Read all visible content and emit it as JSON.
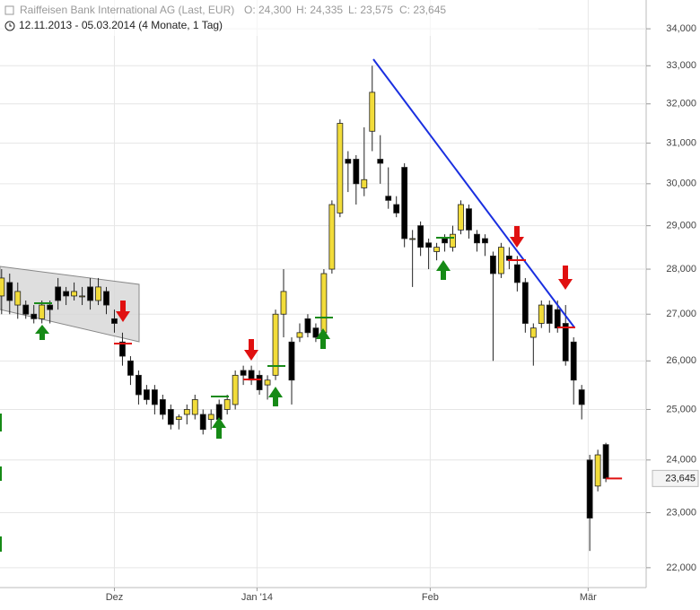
{
  "chart_data": {
    "type": "candlestick",
    "title": "Raiffeisen Bank International AG (Last, EUR)",
    "quote": [
      "O: 24,300",
      "H: 24,335",
      "L: 23,575",
      "C: 23,645"
    ],
    "subtitle": "12.11.2013 - 05.03.2014 (4 Monate, 1 Tag)",
    "open": [
      27400,
      27700,
      27200,
      27200,
      27000,
      26900,
      27200,
      27600,
      27500,
      27400,
      27400,
      27600,
      27300,
      27500,
      26900,
      26400,
      26000,
      25700,
      25400,
      25400,
      25200,
      25000,
      24800,
      24900,
      24900,
      24900,
      24800,
      25100,
      25000,
      25100,
      25800,
      25800,
      25700,
      25500,
      25700,
      27000,
      26400,
      26500,
      26900,
      26700,
      26600,
      28000,
      29300,
      30600,
      30600,
      29900,
      31300,
      30600,
      29700,
      29500,
      30400,
      28700,
      29000,
      28600,
      28400,
      28700,
      28500,
      28900,
      29400,
      28800,
      28700,
      28300,
      27900,
      28300,
      28100,
      27700,
      26500,
      26800,
      27200,
      27100,
      26800,
      26400,
      25400,
      24000,
      23500,
      24300
    ],
    "high": [
      28000,
      27900,
      27700,
      27300,
      27200,
      27300,
      27300,
      27800,
      27600,
      27700,
      27600,
      27800,
      27800,
      27600,
      27100,
      26600,
      26100,
      25800,
      25500,
      25500,
      25300,
      25100,
      24900,
      25100,
      25300,
      25000,
      25000,
      25200,
      25300,
      25800,
      25900,
      25900,
      25800,
      25700,
      27100,
      28000,
      26500,
      26800,
      27000,
      26800,
      28000,
      29600,
      31600,
      30800,
      30700,
      31400,
      33000,
      31200,
      30400,
      29700,
      30500,
      28900,
      29100,
      28700,
      28600,
      28800,
      29000,
      29600,
      29500,
      28900,
      28800,
      28400,
      28600,
      28500,
      28300,
      27800,
      26800,
      27300,
      27300,
      27300,
      27200,
      26500,
      25500,
      24100,
      24200,
      24335
    ],
    "low": [
      27000,
      27000,
      26900,
      26900,
      26800,
      26800,
      26800,
      27100,
      27200,
      27300,
      27200,
      27100,
      27200,
      27000,
      26600,
      25900,
      25500,
      25100,
      25100,
      24900,
      24800,
      24600,
      24600,
      24700,
      24800,
      24500,
      24600,
      24600,
      24900,
      25000,
      25500,
      25500,
      25300,
      25200,
      25600,
      26500,
      25100,
      26400,
      26500,
      26400,
      26500,
      27900,
      29200,
      29800,
      29500,
      29700,
      30800,
      30000,
      29400,
      29200,
      28500,
      27600,
      28300,
      28000,
      28200,
      28400,
      28400,
      28800,
      28700,
      28400,
      28300,
      26000,
      27800,
      28000,
      27500,
      26600,
      25900,
      26700,
      26600,
      26600,
      25900,
      25100,
      24800,
      22300,
      23400,
      23575
    ],
    "close": [
      27800,
      27300,
      27500,
      27000,
      26900,
      27200,
      27100,
      27300,
      27400,
      27500,
      27400,
      27300,
      27600,
      27200,
      26800,
      26100,
      25700,
      25300,
      25200,
      25100,
      24900,
      24700,
      24850,
      25000,
      25200,
      24600,
      24900,
      24800,
      25200,
      25700,
      25700,
      25600,
      25400,
      25600,
      27000,
      27500,
      25600,
      26600,
      26600,
      26500,
      27900,
      29500,
      31500,
      30500,
      30000,
      30100,
      32300,
      30500,
      29600,
      29300,
      28700,
      28700,
      28500,
      28500,
      28500,
      28600,
      28800,
      29500,
      28900,
      28600,
      28600,
      27900,
      28500,
      28200,
      27700,
      26800,
      26700,
      27200,
      26800,
      26700,
      26000,
      25600,
      25100,
      22900,
      24100,
      23645
    ],
    "up_color": "#f2dc3a",
    "down_color": "#000000",
    "log_scale": true,
    "grid": true,
    "xlim": [
      -0.2,
      80
    ],
    "xticks": [
      {
        "value": 14,
        "label": "Dez"
      },
      {
        "value": 31.7,
        "label": "Jan '14"
      },
      {
        "value": 53.2,
        "label": "Feb"
      },
      {
        "value": 72.8,
        "label": "Mär"
      }
    ],
    "ylim": [
      21650,
      34800
    ],
    "yticks": [
      {
        "value": 22000,
        "label": "22,000"
      },
      {
        "value": 23000,
        "label": "23,000"
      },
      {
        "value": 24000,
        "label": "24,000"
      },
      {
        "value": 25000,
        "label": "25,000"
      },
      {
        "value": 26000,
        "label": "26,000"
      },
      {
        "value": 27000,
        "label": "27,000"
      },
      {
        "value": 28000,
        "label": "28,000"
      },
      {
        "value": 29000,
        "label": "29,000"
      },
      {
        "value": 30000,
        "label": "30,000"
      },
      {
        "value": 31000,
        "label": "31,000"
      },
      {
        "value": 32000,
        "label": "32,000"
      },
      {
        "value": 33000,
        "label": "33,000"
      },
      {
        "value": 34000,
        "label": "34,000"
      }
    ],
    "last_price": {
      "value": 23645,
      "label": "23,645"
    }
  }
}
